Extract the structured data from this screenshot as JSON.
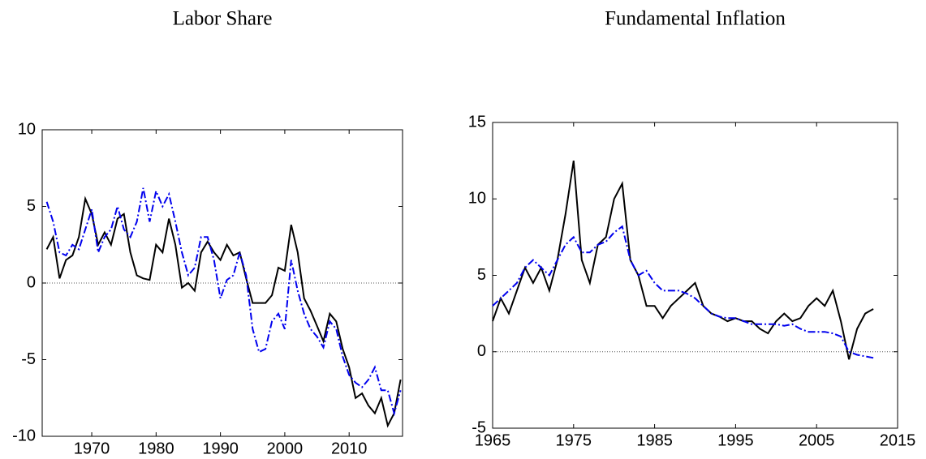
{
  "chart_data": [
    {
      "type": "line",
      "title": "Labor Share",
      "x": [
        1963,
        1964,
        1965,
        1966,
        1967,
        1968,
        1969,
        1970,
        1971,
        1972,
        1973,
        1974,
        1975,
        1976,
        1977,
        1978,
        1979,
        1980,
        1981,
        1982,
        1983,
        1984,
        1985,
        1986,
        1987,
        1988,
        1989,
        1990,
        1991,
        1992,
        1993,
        1994,
        1995,
        1996,
        1997,
        1998,
        1999,
        2000,
        2001,
        2002,
        2003,
        2004,
        2005,
        2006,
        2007,
        2008,
        2009,
        2010,
        2011,
        2012,
        2013,
        2014,
        2015,
        2016,
        2017,
        2018
      ],
      "series": [
        {
          "color": "#000000",
          "linestyle": "solid",
          "values": [
            2.2,
            3.0,
            0.3,
            1.5,
            1.8,
            3.0,
            5.5,
            4.5,
            2.5,
            3.3,
            2.5,
            4.2,
            4.5,
            2.0,
            0.5,
            0.3,
            0.2,
            2.5,
            2.0,
            4.2,
            2.5,
            -0.3,
            0.0,
            -0.5,
            2.0,
            2.7,
            2.0,
            1.5,
            2.5,
            1.8,
            2.0,
            0.3,
            -1.3,
            -1.3,
            -1.3,
            -0.8,
            1.0,
            0.8,
            3.8,
            2.0,
            -1.0,
            -1.8,
            -2.8,
            -3.8,
            -2.0,
            -2.5,
            -4.3,
            -5.5,
            -7.5,
            -7.2,
            -8.0,
            -8.5,
            -7.5,
            -9.3,
            -8.5,
            -6.3
          ]
        },
        {
          "color": "#0000ee",
          "linestyle": "dashdot",
          "values": [
            5.3,
            4.0,
            2.0,
            1.8,
            2.5,
            2.2,
            3.5,
            4.8,
            2.0,
            3.0,
            3.5,
            5.0,
            3.5,
            3.0,
            4.0,
            6.2,
            4.0,
            6.0,
            5.0,
            5.8,
            4.0,
            2.0,
            0.5,
            1.0,
            3.0,
            3.0,
            1.5,
            -1.0,
            0.2,
            0.5,
            2.0,
            0.5,
            -3.0,
            -4.5,
            -4.3,
            -2.5,
            -2.0,
            -3.0,
            1.5,
            -0.5,
            -2.0,
            -3.0,
            -3.5,
            -4.2,
            -2.5,
            -3.0,
            -4.8,
            -6.0,
            -6.5,
            -6.8,
            -6.3,
            -5.5,
            -7.0,
            -7.0,
            -8.5,
            -7.0
          ]
        }
      ],
      "xlim": [
        1962.3,
        2018.3
      ],
      "xticks": [
        1970,
        1980,
        1990,
        2000,
        2010
      ],
      "ylim": [
        -10,
        10
      ],
      "yticks": [
        -10,
        -5,
        0,
        5,
        10
      ],
      "zero_line": true
    },
    {
      "type": "line",
      "title": "Fundamental Inflation",
      "x": [
        1965,
        1966,
        1967,
        1968,
        1969,
        1970,
        1971,
        1972,
        1973,
        1974,
        1975,
        1976,
        1977,
        1978,
        1979,
        1980,
        1981,
        1982,
        1983,
        1984,
        1985,
        1986,
        1987,
        1988,
        1989,
        1990,
        1991,
        1992,
        1993,
        1994,
        1995,
        1996,
        1997,
        1998,
        1999,
        2000,
        2001,
        2002,
        2003,
        2004,
        2005,
        2006,
        2007,
        2008,
        2009,
        2010,
        2011,
        2012
      ],
      "series": [
        {
          "color": "#000000",
          "linestyle": "solid",
          "values": [
            2.0,
            3.5,
            2.5,
            4.0,
            5.5,
            4.5,
            5.5,
            4.0,
            6.0,
            9.0,
            12.5,
            6.0,
            4.5,
            7.0,
            7.5,
            10.0,
            11.0,
            6.0,
            5.0,
            3.0,
            3.0,
            2.2,
            3.0,
            3.5,
            4.0,
            4.5,
            3.0,
            2.5,
            2.3,
            2.0,
            2.2,
            2.0,
            2.0,
            1.5,
            1.2,
            2.0,
            2.5,
            2.0,
            2.2,
            3.0,
            3.5,
            3.0,
            4.0,
            2.0,
            -0.5,
            1.5,
            2.5,
            2.8
          ]
        },
        {
          "color": "#0000ee",
          "linestyle": "dashdot",
          "values": [
            3.0,
            3.5,
            4.0,
            4.5,
            5.5,
            6.0,
            5.5,
            5.0,
            6.0,
            7.0,
            7.5,
            6.5,
            6.5,
            7.0,
            7.2,
            7.8,
            8.2,
            6.0,
            5.0,
            5.3,
            4.5,
            4.0,
            4.0,
            4.0,
            3.8,
            3.5,
            3.0,
            2.5,
            2.3,
            2.2,
            2.2,
            2.0,
            1.8,
            1.8,
            1.8,
            1.8,
            1.7,
            1.8,
            1.5,
            1.3,
            1.3,
            1.3,
            1.2,
            1.0,
            0.0,
            -0.2,
            -0.3,
            -0.4
          ]
        }
      ],
      "xlim": [
        1965,
        2015
      ],
      "xticks": [
        1965,
        1975,
        1985,
        1995,
        2005,
        2015
      ],
      "ylim": [
        -5,
        15
      ],
      "yticks": [
        -5,
        0,
        5,
        10,
        15
      ],
      "zero_line": true
    }
  ]
}
